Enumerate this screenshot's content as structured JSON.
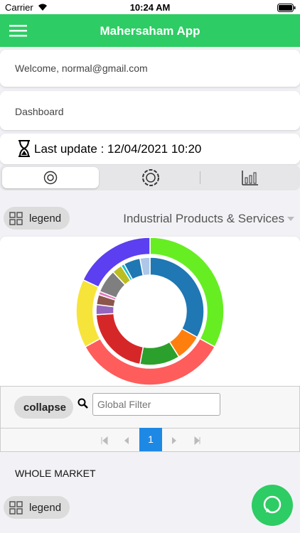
{
  "status_bar": {
    "carrier": "Carrier",
    "time": "10:24 AM"
  },
  "header": {
    "title": "Mahersaham App"
  },
  "welcome": "Welcome, normal@gmail.com",
  "dashboard": "Dashboard",
  "last_update": "Last update : 12/04/2021 10:20",
  "legend_button": "legend",
  "sector_select": "Industrial Products & Services",
  "chart_data": {
    "type": "pie",
    "rings": [
      {
        "values": [
          33,
          34,
          15,
          18
        ],
        "colors": [
          "#66ee22",
          "#ff5c5c",
          "#f7e43a",
          "#5b3ff0"
        ]
      },
      {
        "values": [
          33,
          8,
          12,
          21,
          3,
          3,
          1,
          7,
          3,
          1,
          5,
          3
        ],
        "colors": [
          "#1f77b4",
          "#ff7f0e",
          "#2ca02c",
          "#d62728",
          "#9467bd",
          "#8c564b",
          "#e377c2",
          "#7f7f7f",
          "#bcbd22",
          "#17becf",
          "#1f77b4",
          "#aec7e8"
        ]
      }
    ]
  },
  "table": {
    "collapse": "collapse",
    "filter_placeholder": "Global Filter",
    "page": 1
  },
  "section_title": "WHOLE MARKET",
  "legend_button_2": "legend"
}
